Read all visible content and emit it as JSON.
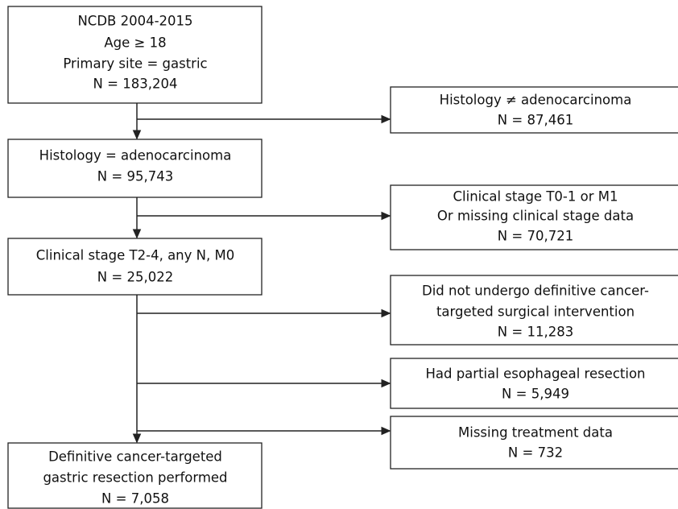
{
  "main_boxes": [
    {
      "lines": [
        "NCDB 2004-2015",
        "Age ≥ 18",
        "Primary site = gastric",
        "N = 183,204"
      ]
    },
    {
      "lines": [
        "Histology = adenocarcinoma",
        "N = 95,743"
      ]
    },
    {
      "lines": [
        "Clinical stage T2-4, any N, M0",
        "N = 25,022"
      ]
    },
    {
      "lines": [
        "Definitive cancer-targeted",
        "gastric resection performed",
        "N = 7,058"
      ]
    }
  ],
  "excluded_boxes": [
    {
      "lines": [
        "Histology ≠ adenocarcinoma",
        "N = 87,461"
      ]
    },
    {
      "lines": [
        "Clinical stage T0-1 or M1",
        "Or missing clinical stage data",
        "N = 70,721"
      ]
    },
    {
      "lines": [
        "Did not undergo definitive cancer-",
        "targeted surgical intervention",
        "N = 11,283"
      ]
    },
    {
      "lines": [
        "Had partial esophageal resection",
        "N = 5,949"
      ]
    },
    {
      "lines": [
        "Missing treatment data",
        "N = 732"
      ]
    }
  ]
}
